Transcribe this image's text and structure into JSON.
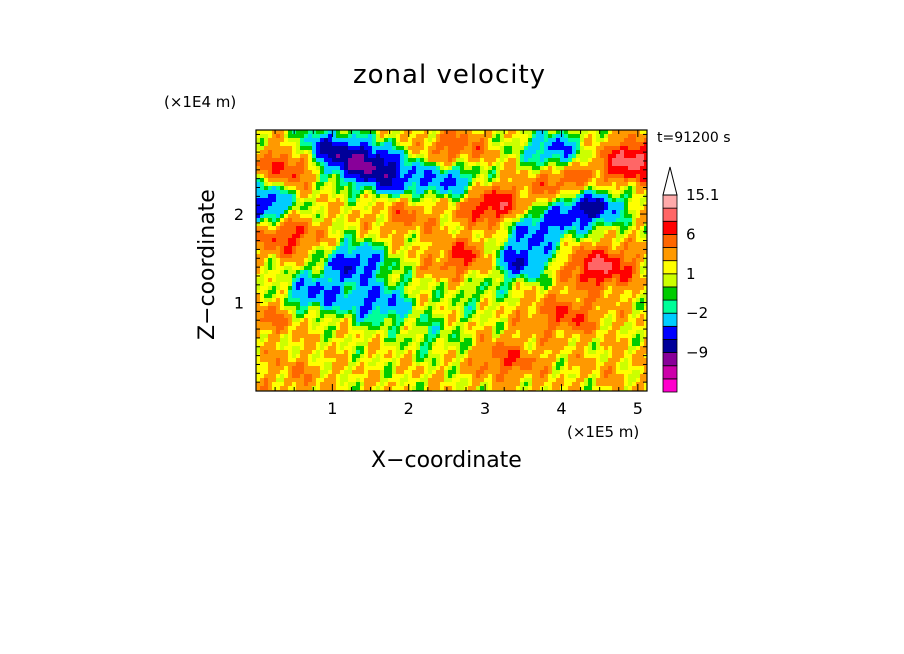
{
  "chart_data": {
    "type": "heatmap",
    "title": "zonal velocity",
    "xlabel": "X−coordinate",
    "ylabel": "Z−coordinate",
    "x_unit": "(×1E5 m)",
    "y_unit": "(×1E4 m)",
    "annotation": "t=91200 s",
    "xlim": [
      0,
      5.12
    ],
    "ylim": [
      0,
      2.95
    ],
    "x_ticks": [
      "1",
      "2",
      "3",
      "4",
      "5"
    ],
    "x_tick_values": [
      1,
      2,
      3,
      4,
      5
    ],
    "y_ticks": [
      "1",
      "2"
    ],
    "y_tick_values": [
      1,
      2
    ],
    "colorbar": {
      "labels": [
        "15.1",
        "6",
        "1",
        "−2",
        "−9"
      ],
      "label_values": [
        15.1,
        6,
        1,
        -2,
        -9
      ],
      "levels": [
        -15,
        -12,
        -9,
        -6,
        -4,
        -2,
        -1,
        0,
        1,
        2,
        4,
        6,
        9,
        12,
        15.1
      ],
      "colors": [
        "#ff00cc",
        "#cc00aa",
        "#880099",
        "#000099",
        "#0000ff",
        "#00ccff",
        "#00ff99",
        "#00cc00",
        "#ccff00",
        "#ffff00",
        "#ff9900",
        "#ff6600",
        "#ff0000",
        "#ff6666",
        "#ffaaaa",
        "#ffffff"
      ],
      "extend": "max"
    },
    "features": [
      {
        "x": 0.05,
        "z": 2.12,
        "value": -8
      },
      {
        "x": 0.9,
        "z": 2.72,
        "value": -7
      },
      {
        "x": 1.4,
        "z": 2.58,
        "value": -9
      },
      {
        "x": 1.8,
        "z": 2.4,
        "value": -6
      },
      {
        "x": 2.55,
        "z": 2.38,
        "value": -6
      },
      {
        "x": 3.9,
        "z": 2.72,
        "value": -6
      },
      {
        "x": 4.35,
        "z": 2.08,
        "value": -9
      },
      {
        "x": 3.45,
        "z": 1.48,
        "value": -7
      },
      {
        "x": 3.7,
        "z": 1.85,
        "value": -6
      },
      {
        "x": 1.3,
        "z": 1.45,
        "value": -7
      },
      {
        "x": 0.75,
        "z": 1.1,
        "value": -6
      },
      {
        "x": 1.6,
        "z": 1.0,
        "value": -6
      },
      {
        "x": 2.3,
        "z": 0.62,
        "value": -2
      },
      {
        "x": 2.9,
        "z": 1.1,
        "value": -2
      },
      {
        "x": 4.5,
        "z": 1.4,
        "value": 8
      },
      {
        "x": 4.95,
        "z": 2.6,
        "value": 9
      },
      {
        "x": 3.1,
        "z": 2.1,
        "value": 7
      },
      {
        "x": 2.75,
        "z": 1.5,
        "value": 5
      },
      {
        "x": 0.4,
        "z": 1.75,
        "value": 5
      },
      {
        "x": 0.45,
        "z": 2.55,
        "value": 6
      },
      {
        "x": 4.1,
        "z": 0.85,
        "value": 4
      },
      {
        "x": 3.3,
        "z": 0.35,
        "value": 4
      },
      {
        "x": 0.2,
        "z": 0.85,
        "value": 3
      },
      {
        "x": 2.6,
        "z": 2.72,
        "value": 4
      },
      {
        "x": 4.05,
        "z": 2.35,
        "value": 5
      },
      {
        "x": 1.95,
        "z": 2.0,
        "value": 3
      },
      {
        "x": 3.6,
        "z": 0.95,
        "value": 1
      },
      {
        "x": 0.5,
        "z": 0.2,
        "value": 2
      },
      {
        "x": 1.7,
        "z": 0.2,
        "value": 0
      },
      {
        "x": 4.6,
        "z": 0.25,
        "value": 1
      }
    ]
  }
}
